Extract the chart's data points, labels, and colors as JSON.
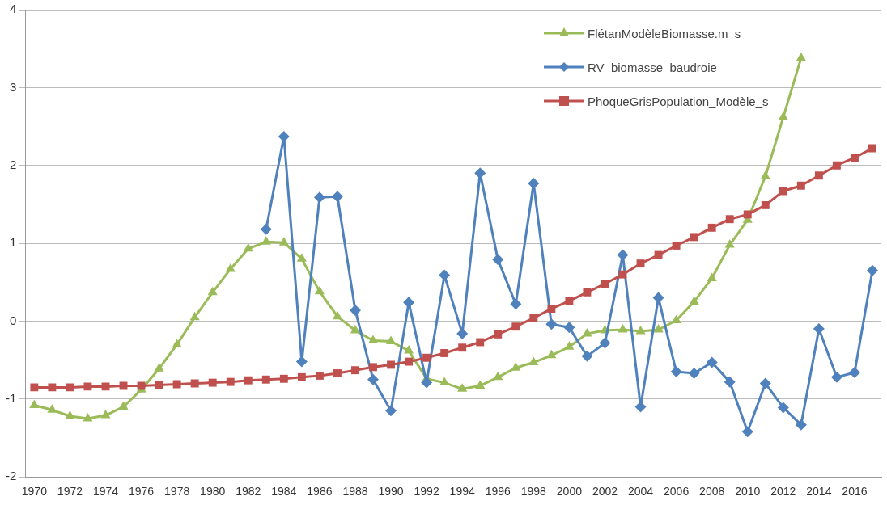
{
  "chart_data": {
    "type": "line",
    "categories": [
      "1970",
      null,
      "1972",
      null,
      "1974",
      null,
      "1976",
      null,
      "1978",
      null,
      "1980",
      null,
      "1982",
      null,
      "1984",
      null,
      "1986",
      null,
      "1988",
      null,
      "1990",
      null,
      "1992",
      null,
      "1994",
      null,
      "1996",
      null,
      "1998",
      null,
      "2000",
      null,
      "2002",
      null,
      "2004",
      null,
      "2006",
      null,
      "2008",
      null,
      "2010",
      null,
      "2012",
      null,
      "2014",
      null,
      "2016",
      null
    ],
    "series": [
      {
        "name": "FlétanModèleBiomasse.m_s",
        "color": "#9bbb59",
        "marker": "triangle",
        "values": [
          -1.08,
          -1.14,
          -1.22,
          -1.25,
          -1.21,
          -1.1,
          -0.88,
          -0.61,
          -0.3,
          0.05,
          0.37,
          0.67,
          0.93,
          1.02,
          1.01,
          0.8,
          0.38,
          0.06,
          -0.12,
          -0.25,
          -0.26,
          -0.38,
          -0.74,
          -0.79,
          -0.87,
          -0.83,
          -0.72,
          -0.6,
          -0.53,
          -0.44,
          -0.33,
          -0.16,
          -0.12,
          -0.11,
          -0.13,
          -0.11,
          0.01,
          0.25,
          0.55,
          0.98,
          1.3,
          1.86,
          2.62,
          3.38,
          null,
          null,
          null,
          null
        ]
      },
      {
        "name": "RV_biomasse_baudroie",
        "color": "#4f81bd",
        "marker": "diamond",
        "values": [
          null,
          null,
          null,
          null,
          null,
          null,
          null,
          null,
          null,
          null,
          null,
          null,
          null,
          1.18,
          2.37,
          -0.52,
          1.59,
          1.6,
          0.14,
          -0.75,
          -1.15,
          0.24,
          -0.79,
          0.59,
          -0.16,
          1.9,
          0.79,
          0.22,
          1.77,
          -0.04,
          -0.08,
          -0.45,
          -0.28,
          0.85,
          -1.1,
          0.3,
          -0.65,
          -0.67,
          -0.53,
          -0.78,
          -1.42,
          -0.8,
          -1.11,
          -1.33,
          -0.1,
          -0.72,
          -0.66,
          0.65
        ]
      },
      {
        "name": "PhoqueGrisPopulation_Modèle_s",
        "color": "#c0504d",
        "marker": "square",
        "values": [
          -0.85,
          -0.85,
          -0.85,
          -0.84,
          -0.84,
          -0.83,
          -0.83,
          -0.82,
          -0.81,
          -0.8,
          -0.79,
          -0.78,
          -0.76,
          -0.75,
          -0.74,
          -0.72,
          -0.7,
          -0.67,
          -0.63,
          -0.59,
          -0.56,
          -0.52,
          -0.47,
          -0.41,
          -0.34,
          -0.27,
          -0.17,
          -0.07,
          0.04,
          0.16,
          0.26,
          0.37,
          0.48,
          0.6,
          0.74,
          0.85,
          0.97,
          1.08,
          1.2,
          1.31,
          1.37,
          1.49,
          1.67,
          1.74,
          1.87,
          2.0,
          2.1,
          2.22
        ]
      }
    ],
    "ylim": [
      -2,
      4
    ],
    "yticks": [
      -2,
      -1,
      0,
      1,
      2,
      3,
      4
    ],
    "grid": "y",
    "legend": "top right",
    "line_style": "solid"
  }
}
